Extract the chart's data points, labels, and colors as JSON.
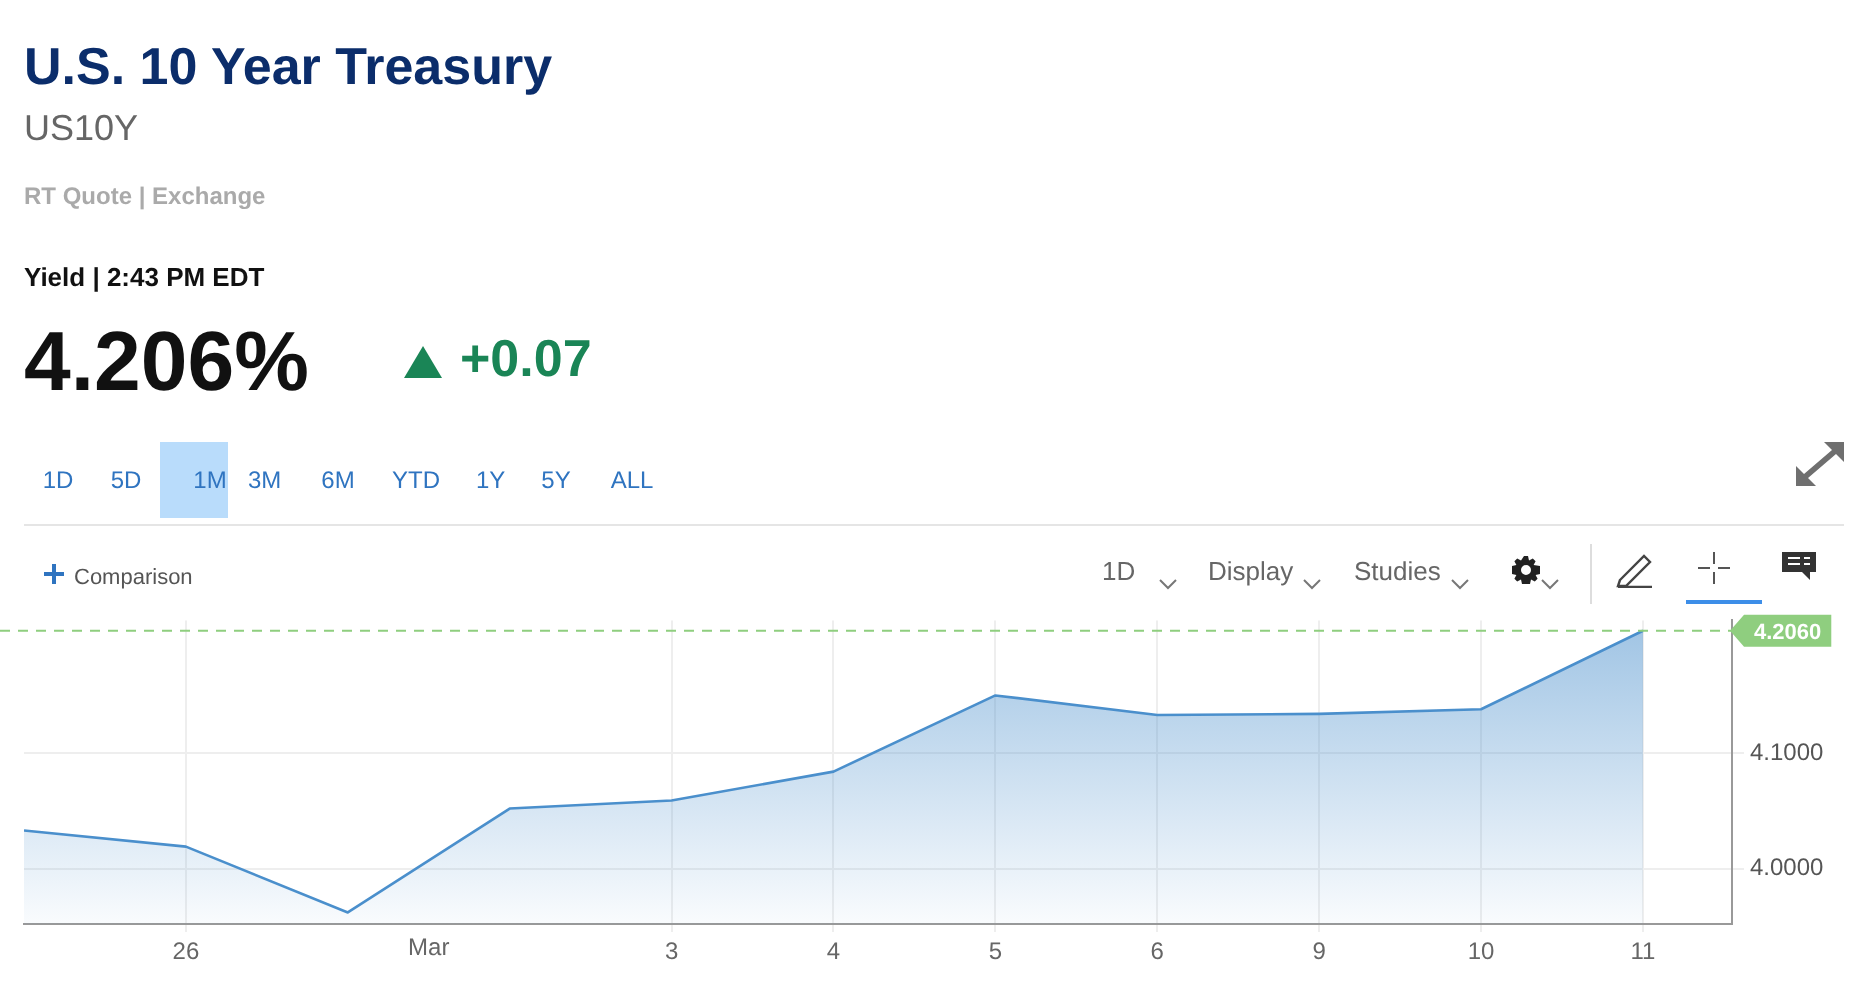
{
  "chart_data": {
    "type": "area",
    "title": "U.S. 10 Year Treasury",
    "subtitle": "US10Y",
    "annotations": [
      "RT Quote | Exchange",
      "Yield | 2:43 PM EDT",
      "4.206%",
      "+0.07",
      "1D",
      "5D",
      "1M",
      "3M",
      "6M",
      "YTD",
      "1Y",
      "5Y",
      "ALL",
      "Comparison",
      "1D",
      "Display",
      "Studies",
      "Mar"
    ],
    "categories": [
      null,
      "26",
      null,
      null,
      "3",
      "4",
      "5",
      "6",
      "9",
      "10",
      "11"
    ],
    "series": [
      {
        "color": "#4a8fcc",
        "values": [
          4.033,
          4.019,
          3.962,
          4.052,
          4.059,
          4.084,
          4.15,
          4.133,
          4.134,
          4.138,
          4.206
        ]
      }
    ],
    "ylim": [
      3.952,
      4.215
    ],
    "yticks": [
      {
        "value": 4,
        "label": "4.0000"
      },
      {
        "value": 4.1,
        "label": "4.1000"
      }
    ],
    "ref_lines": [
      {
        "axis": "y",
        "value": 4.206,
        "label": "4.2060",
        "color": "#8fce7f",
        "line_style": "dashed"
      }
    ],
    "grid": true,
    "legend": false,
    "marker": "none",
    "line_style": "solid"
  }
}
